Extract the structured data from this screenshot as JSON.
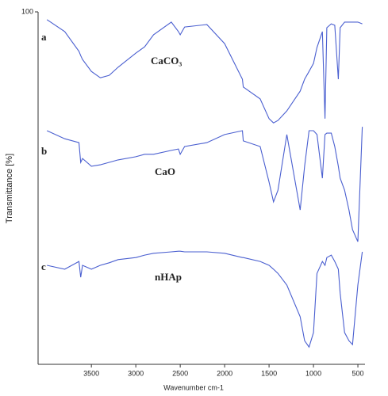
{
  "chart_data": {
    "type": "line",
    "xlabel": "Wavenumber cm-1",
    "ylabel": "Transmittance [%]",
    "annotations": [
      "a",
      "CaCO₃",
      "b",
      "CaO",
      "c",
      "nHAp"
    ],
    "x": [
      4000,
      3800,
      3640,
      3620,
      3600,
      3500,
      3400,
      3300,
      3200,
      3000,
      2900,
      2800,
      2600,
      2520,
      2500,
      2450,
      2200,
      2000,
      1800,
      1790,
      1600,
      1500,
      1450,
      1400,
      1300,
      1150,
      1100,
      1050,
      1000,
      960,
      900,
      870,
      850,
      800,
      760,
      720,
      700,
      650,
      600,
      560,
      500,
      450
    ],
    "series": [
      {
        "color": "#4a5fd0",
        "values": [
          97.8,
          94.4,
          88.8,
          87.6,
          86.5,
          83.1,
          81.3,
          82.0,
          84.3,
          88.3,
          90.1,
          93.5,
          97.1,
          94.4,
          93.5,
          95.7,
          96.4,
          91.0,
          80.9,
          78.7,
          75.3,
          69.7,
          68.5,
          69.2,
          71.9,
          77.5,
          80.9,
          83.1,
          85.4,
          89.9,
          94.4,
          69.7,
          95.5,
          96.6,
          96.2,
          80.9,
          95.5,
          97.1,
          97.1,
          97.1,
          97.1,
          96.6
        ]
      },
      {
        "color": "#4a5fd0",
        "values": [
          66.3,
          64.0,
          62.9,
          57.3,
          58.4,
          56.2,
          56.6,
          57.3,
          58.0,
          58.9,
          59.6,
          59.6,
          60.7,
          61.1,
          59.6,
          61.8,
          62.9,
          65.2,
          66.3,
          63.4,
          61.8,
          51.7,
          46.1,
          49.4,
          65.2,
          43.8,
          56.2,
          66.3,
          66.3,
          65.2,
          52.8,
          65.2,
          65.6,
          65.6,
          61.8,
          56.2,
          52.8,
          49.4,
          43.8,
          38.2,
          34.8,
          67.4
        ]
      },
      {
        "color": "#4a5fd0",
        "values": [
          28.1,
          27.0,
          29.2,
          24.7,
          28.1,
          27.0,
          28.1,
          28.8,
          29.7,
          30.3,
          31.0,
          31.5,
          31.9,
          32.1,
          32.1,
          31.9,
          31.9,
          31.5,
          30.3,
          30.3,
          29.2,
          28.1,
          27.0,
          25.8,
          22.5,
          13.5,
          6.7,
          4.9,
          9.0,
          25.8,
          29.2,
          28.1,
          30.3,
          31.0,
          29.2,
          27.0,
          20.2,
          9.0,
          6.7,
          5.6,
          22.5,
          31.9
        ]
      }
    ],
    "xlim": [
      4100,
      420
    ],
    "xticks": [
      3500,
      3000,
      2500,
      2000,
      1500,
      1000,
      500
    ],
    "ylim": [
      0,
      100
    ],
    "yticks": [
      100
    ]
  }
}
